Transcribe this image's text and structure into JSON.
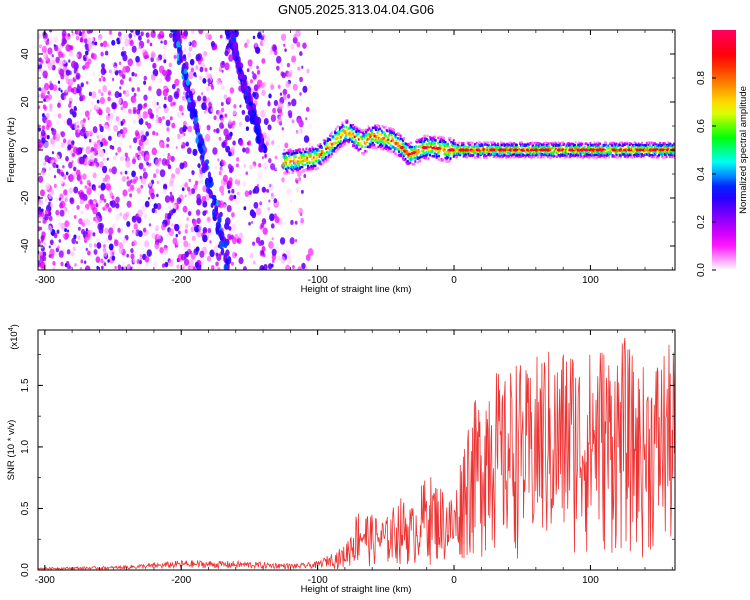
{
  "title": "GN05.2025.313.04.04.G06",
  "colors": {
    "snr_line": "#ee3333",
    "frame": "#000000",
    "background": "#ffffff"
  },
  "chart_data": [
    {
      "type": "heatmap",
      "xlabel": "Height of straight line (km)",
      "ylabel": "Frequency (Hz)",
      "xlim": [
        -305,
        162
      ],
      "ylim": [
        -50,
        50
      ],
      "x_ticks": [
        "-300",
        "-200",
        "-100",
        "0",
        "100"
      ],
      "y_ticks": [
        "-40",
        "-20",
        "0",
        "20",
        "40"
      ],
      "colorbar": {
        "label": "Normalized spectral amplitude",
        "range": [
          0,
          1
        ],
        "ticks": [
          "0.0",
          "0.2",
          "0.4",
          "0.6",
          "0.8"
        ],
        "colors": [
          "#ffffff",
          "#ff00ff",
          "#8000ff",
          "#0000ff",
          "#00ffff",
          "#00ff00",
          "#ffff00",
          "#ff8000",
          "#ff0000",
          "#ff0060"
        ]
      },
      "features": [
        {
          "kind": "noise-region",
          "x_range": [
            -305,
            -105
          ],
          "freq_range": [
            -50,
            50
          ],
          "amplitude_range": [
            0.0,
            0.3
          ]
        },
        {
          "kind": "diagonal-streak",
          "x_range": [
            -205,
            -165
          ],
          "freq_range": [
            -50,
            50
          ],
          "amplitude": 0.35
        },
        {
          "kind": "diagonal-streak",
          "x_range": [
            -165,
            -140
          ],
          "freq_range": [
            0,
            50
          ],
          "amplitude": 0.3
        },
        {
          "kind": "signal-trace",
          "amplitude": 0.95,
          "points": [
            [
              -125,
              -5
            ],
            [
              -110,
              -4
            ],
            [
              -100,
              -3
            ],
            [
              -92,
              1
            ],
            [
              -85,
              5
            ],
            [
              -78,
              8
            ],
            [
              -72,
              5
            ],
            [
              -66,
              3
            ],
            [
              -60,
              6
            ],
            [
              -52,
              5
            ],
            [
              -45,
              4
            ],
            [
              -38,
              1
            ],
            [
              -33,
              -2
            ],
            [
              -28,
              -1
            ],
            [
              -22,
              1
            ],
            [
              -15,
              1
            ],
            [
              -5,
              0
            ],
            [
              0,
              0
            ],
            [
              20,
              0
            ],
            [
              50,
              0
            ],
            [
              80,
              0
            ],
            [
              110,
              0
            ],
            [
              140,
              0
            ],
            [
              162,
              0
            ]
          ]
        }
      ]
    },
    {
      "type": "line",
      "xlabel": "Height of straight line (km)",
      "ylabel": "SNR (10 * v/v)",
      "y_scale_label": "(x10",
      "y_scale_exp": "4",
      "y_scale_close": ")",
      "xlim": [
        -305,
        162
      ],
      "ylim": [
        0,
        1.95
      ],
      "x_ticks": [
        "-300",
        "-200",
        "-100",
        "0",
        "100"
      ],
      "y_ticks": [
        "0.0",
        "0.5",
        "1.0",
        "1.5"
      ],
      "series": [
        {
          "envelope": [
            [
              -305,
              0.02
            ],
            [
              -250,
              0.03
            ],
            [
              -215,
              0.06
            ],
            [
              -200,
              0.08
            ],
            [
              -150,
              0.07
            ],
            [
              -115,
              0.05
            ],
            [
              -100,
              0.07
            ],
            [
              -80,
              0.2
            ],
            [
              -70,
              0.52
            ],
            [
              -60,
              0.45
            ],
            [
              -50,
              0.42
            ],
            [
              -40,
              0.6
            ],
            [
              -30,
              0.52
            ],
            [
              -20,
              0.8
            ],
            [
              -10,
              0.7
            ],
            [
              0,
              0.6
            ],
            [
              10,
              1.3
            ],
            [
              20,
              1.45
            ],
            [
              27,
              1.85
            ],
            [
              35,
              1.5
            ],
            [
              45,
              1.75
            ],
            [
              55,
              1.6
            ],
            [
              65,
              1.85
            ],
            [
              75,
              1.75
            ],
            [
              85,
              1.9
            ],
            [
              95,
              1.7
            ],
            [
              105,
              1.9
            ],
            [
              115,
              1.8
            ],
            [
              125,
              1.9
            ],
            [
              135,
              1.65
            ],
            [
              145,
              1.7
            ],
            [
              155,
              1.85
            ],
            [
              162,
              1.8
            ]
          ]
        }
      ]
    }
  ]
}
